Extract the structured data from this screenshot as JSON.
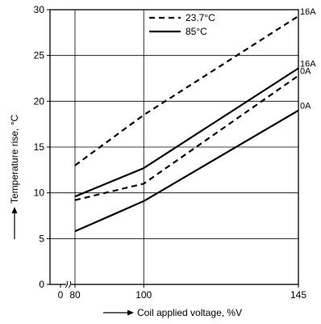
{
  "chart_data": {
    "type": "line",
    "x_tick_labels": [
      "0",
      "80",
      "100",
      "145"
    ],
    "y_tick_labels": [
      "0",
      "5",
      "10",
      "15",
      "20",
      "25",
      "30"
    ],
    "x_ticks": [
      80,
      100,
      145
    ],
    "y_ticks": [
      0,
      5,
      10,
      15,
      20,
      25,
      30
    ],
    "xlabel": "Coil applied voltage, %V",
    "ylabel": "Temperature rise, °C",
    "ylim": [
      0,
      30
    ],
    "xlim": [
      80,
      145
    ],
    "x_axis_break": true,
    "grid": true,
    "legend_position": "top-center",
    "legend": [
      {
        "label": "23.7°C",
        "style": "dashed"
      },
      {
        "label": "85°C",
        "style": "solid"
      }
    ],
    "series": [
      {
        "condition": "23.7°C",
        "current": "16A",
        "style": "dashed",
        "x": [
          80,
          100,
          145
        ],
        "y": [
          13.0,
          18.5,
          29.3
        ]
      },
      {
        "condition": "23.7°C",
        "current": "0A",
        "style": "dashed",
        "x": [
          80,
          100,
          145
        ],
        "y": [
          9.2,
          11.0,
          22.8
        ]
      },
      {
        "condition": "85°C",
        "current": "16A",
        "style": "solid",
        "x": [
          80,
          100,
          145
        ],
        "y": [
          9.6,
          12.7,
          23.6
        ]
      },
      {
        "condition": "85°C",
        "current": "0A",
        "style": "solid",
        "x": [
          80,
          100,
          145
        ],
        "y": [
          5.8,
          9.1,
          19.0
        ]
      }
    ],
    "color": "#000000"
  }
}
